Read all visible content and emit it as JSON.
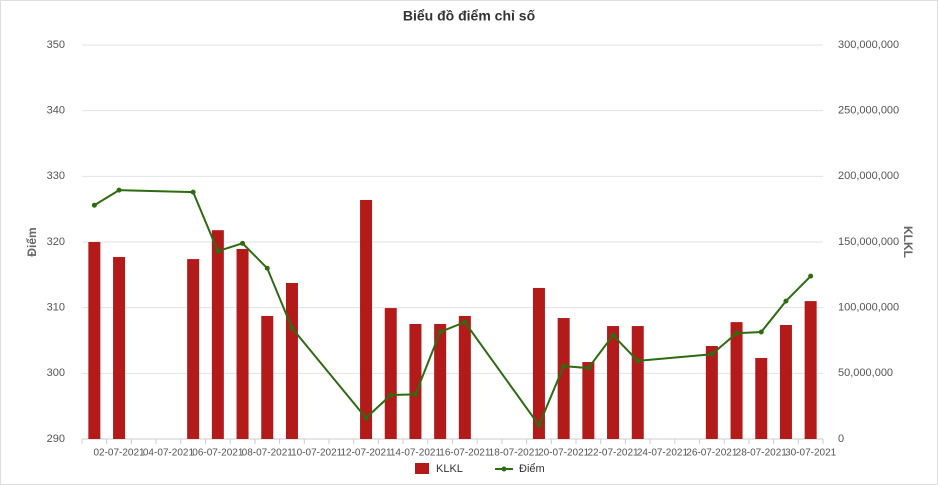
{
  "chart_data": {
    "type": "combo",
    "title": "Biểu đồ điểm chỉ số",
    "categories": [
      null,
      "02-07-2021",
      null,
      "04-07-2021",
      null,
      "06-07-2021",
      null,
      "08-07-2021",
      null,
      "10-07-2021",
      null,
      "12-07-2021",
      null,
      "14-07-2021",
      null,
      "16-07-2021",
      null,
      "18-07-2021",
      null,
      "20-07-2021",
      null,
      "22-07-2021",
      null,
      "24-07-2021",
      null,
      "26-07-2021",
      null,
      "28-07-2021",
      null,
      "30-07-2021"
    ],
    "y_label": "Điểm",
    "y2_label": "KLKL",
    "ylim": [
      290,
      350
    ],
    "yticks": [
      290,
      300,
      310,
      320,
      330,
      340,
      350
    ],
    "y2lim": [
      0,
      300000000
    ],
    "y2ticks": [
      0,
      {
        "value": 50000000,
        "label": "50,000,000"
      },
      {
        "value": 100000000,
        "label": "100,000,000"
      },
      {
        "value": 150000000,
        "label": "150,000,000"
      },
      {
        "value": 200000000,
        "label": "200,000,000"
      },
      {
        "value": 250000000,
        "label": "250,000,000"
      },
      {
        "value": 300000000,
        "label": "300,000,000"
      }
    ],
    "grid": true,
    "span_gaps": true,
    "legend": "bottom",
    "series": [
      {
        "name": "KLKL",
        "type": "bar",
        "axis": "y2",
        "color": "#b31b1b",
        "values": [
          150000000,
          138600000,
          null,
          null,
          137000000,
          159000000,
          144700000,
          93700000,
          118800000,
          null,
          null,
          182000000,
          99700000,
          87600000,
          87600000,
          93700000,
          null,
          null,
          115000000,
          92100000,
          58600000,
          86000000,
          86000000,
          null,
          null,
          70800000,
          89000000,
          61700000,
          86800000,
          105000000
        ]
      },
      {
        "name": "Điểm",
        "type": "line",
        "axis": "y",
        "color": "#2e6b12",
        "values": [
          325.6,
          327.9,
          null,
          null,
          327.6,
          318.6,
          319.8,
          316.0,
          306.9,
          null,
          null,
          293.2,
          296.7,
          296.8,
          306.3,
          307.8,
          null,
          null,
          292.1,
          301.1,
          300.8,
          305.8,
          301.9,
          null,
          null,
          302.9,
          306.1,
          306.3,
          311.0,
          314.8
        ]
      }
    ]
  }
}
